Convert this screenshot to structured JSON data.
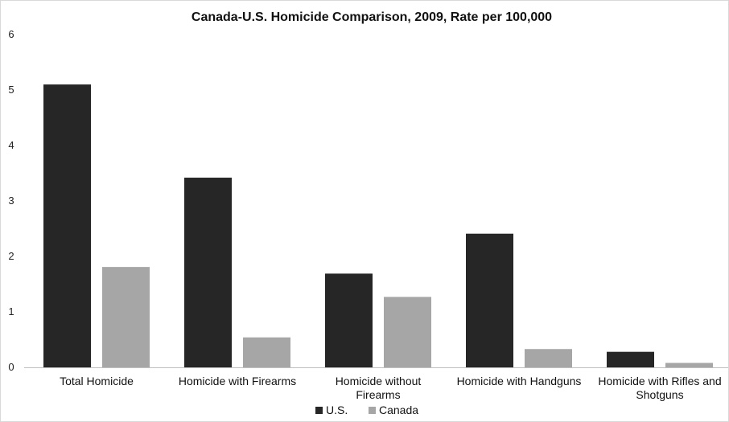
{
  "chart_data": {
    "type": "bar",
    "title": "Canada-U.S. Homicide Comparison, 2009, Rate per 100,000",
    "xlabel": "",
    "ylabel": "",
    "ylim": [
      0,
      6
    ],
    "yticks": [
      "0",
      "1",
      "2",
      "3",
      "4",
      "5",
      "6"
    ],
    "grid": false,
    "legend_position": "bottom",
    "categories": [
      [
        "Total Homicide"
      ],
      [
        "Homicide with Firearms"
      ],
      [
        "Homicide without",
        "Firearms"
      ],
      [
        "Homicide with Handguns"
      ],
      [
        "Homicide with Rifles and",
        "Shotguns"
      ]
    ],
    "series": [
      {
        "name": "U.S.",
        "color": "#262626",
        "values": [
          5.1,
          3.42,
          1.69,
          2.41,
          0.28
        ]
      },
      {
        "name": "Canada",
        "color": "#a6a6a6",
        "values": [
          1.81,
          0.54,
          1.27,
          0.33,
          0.08
        ]
      }
    ]
  }
}
